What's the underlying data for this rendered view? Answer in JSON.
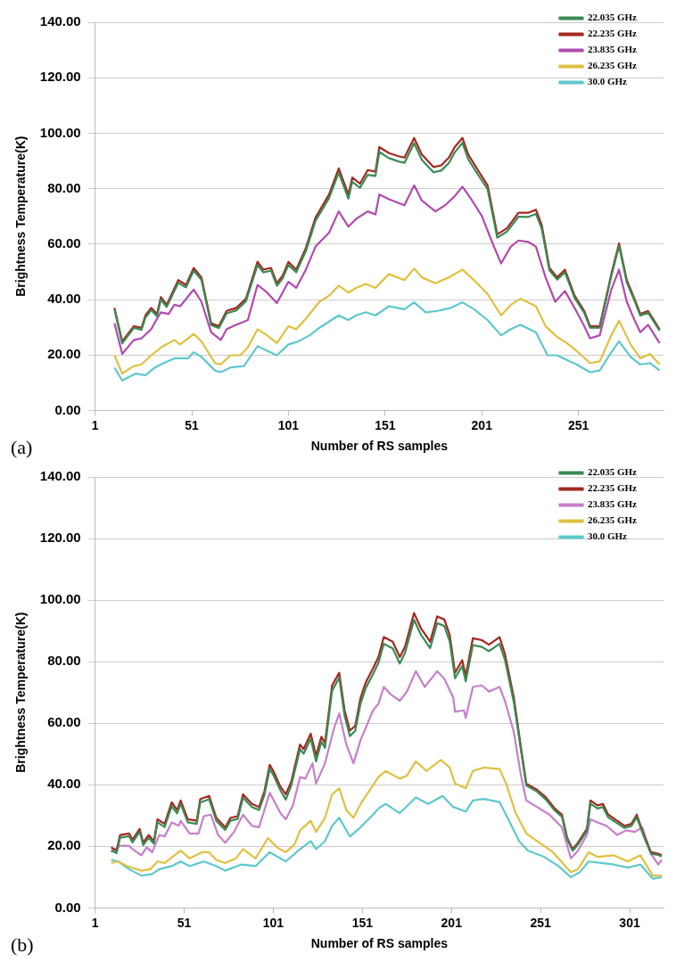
{
  "chart_data": [
    {
      "type": "line",
      "xlabel": "Number of RS samples",
      "ylabel": "Brightness Temperature(K)",
      "annotations": [
        "(a)"
      ],
      "xlim": [
        1,
        295
      ],
      "xticks": [
        1,
        51,
        101,
        151,
        201,
        251
      ],
      "ylim": [
        0,
        140
      ],
      "yticks": [
        {
          "value": 0,
          "label": "0.00"
        },
        {
          "value": 20,
          "label": "20.00"
        },
        {
          "value": 40,
          "label": "40.00"
        },
        {
          "value": 60,
          "label": "60.00"
        },
        {
          "value": 80,
          "label": "80.00"
        },
        {
          "value": 100,
          "label": "100.00"
        },
        {
          "value": 120,
          "label": "120.00"
        },
        {
          "value": 140,
          "label": "140.00"
        }
      ],
      "grid": "y",
      "legend": "top right",
      "series": [
        {
          "name": "22.035 GHz",
          "color": "#3a8a55",
          "x": [
            11,
            15,
            21,
            25,
            27,
            30,
            33,
            35,
            38,
            44,
            48,
            52,
            56,
            61,
            65,
            69,
            74,
            79,
            85,
            88,
            92,
            95,
            98,
            101,
            105,
            110,
            115,
            122,
            127,
            132,
            134,
            138,
            142,
            146,
            148,
            153,
            158,
            161,
            166,
            170,
            176,
            180,
            184,
            187,
            191,
            194,
            199,
            204,
            209,
            214,
            220,
            225,
            229,
            232,
            236,
            240,
            244,
            249,
            254,
            257,
            262,
            268,
            272,
            276,
            280,
            283,
            287,
            293
          ],
          "values": [
            36.5,
            24.2,
            29.8,
            29.1,
            33.5,
            36.2,
            34,
            40,
            37.3,
            46,
            44.4,
            50.4,
            47.1,
            30.8,
            29.7,
            35,
            36.1,
            39.4,
            52.5,
            49.8,
            50.4,
            45,
            47.6,
            52.5,
            49.8,
            57.5,
            68.4,
            76.6,
            85.8,
            76.4,
            82.5,
            80.3,
            85,
            84.6,
            93.2,
            91,
            89.8,
            89.3,
            96.4,
            90.4,
            85.9,
            86.5,
            89.3,
            93.1,
            96.5,
            90.6,
            85.1,
            79.8,
            62.3,
            64.5,
            69.9,
            69.8,
            70.9,
            65.6,
            50.5,
            47.2,
            49.9,
            40.6,
            35.2,
            29.8,
            29.8,
            48.5,
            59.3,
            46.2,
            39.6,
            34.2,
            35.3,
            28.8
          ]
        },
        {
          "name": "22.235 GHz",
          "color": "#a3281e",
          "x": [
            11,
            15,
            21,
            25,
            27,
            30,
            33,
            35,
            38,
            44,
            48,
            52,
            56,
            61,
            65,
            69,
            74,
            79,
            85,
            88,
            92,
            95,
            98,
            101,
            105,
            110,
            115,
            122,
            127,
            132,
            134,
            138,
            142,
            146,
            148,
            153,
            158,
            161,
            166,
            170,
            176,
            180,
            184,
            187,
            191,
            194,
            199,
            204,
            209,
            214,
            220,
            225,
            229,
            232,
            236,
            240,
            244,
            249,
            254,
            257,
            262,
            268,
            272,
            276,
            280,
            283,
            287,
            293
          ],
          "values": [
            37,
            24.9,
            30.4,
            29.8,
            34.3,
            37,
            34.8,
            40.9,
            38.1,
            47,
            45.3,
            51.4,
            48,
            31.5,
            30.4,
            35.9,
            37,
            40.3,
            53.6,
            50.8,
            51.4,
            45.9,
            48.6,
            53.6,
            50.8,
            58.6,
            69.6,
            77.9,
            87.3,
            77.9,
            84,
            81.8,
            86.7,
            86.2,
            95,
            92.8,
            91.7,
            91.2,
            98.3,
            92.3,
            87.8,
            88.4,
            91.2,
            95,
            98.3,
            92.3,
            86.7,
            81.2,
            63.5,
            65.7,
            71.3,
            71.3,
            72.4,
            66.9,
            51.4,
            48,
            50.8,
            41.4,
            35.9,
            30.4,
            30.4,
            49.2,
            60.2,
            47,
            40.3,
            34.8,
            35.9,
            29.3
          ]
        },
        {
          "name": "23.835 GHz",
          "color": "#b04ab0",
          "x": [
            11,
            15,
            21,
            25,
            30,
            33,
            35,
            39,
            42,
            45,
            52,
            56,
            61,
            66,
            69,
            74,
            80,
            85,
            90,
            95,
            101,
            105,
            110,
            115,
            122,
            127,
            132,
            136,
            142,
            146,
            148,
            153,
            161,
            166,
            170,
            177,
            182,
            187,
            191,
            196,
            201,
            206,
            211,
            216,
            220,
            225,
            229,
            234,
            239,
            244,
            249,
            254,
            257,
            262,
            268,
            272,
            276,
            280,
            283,
            287,
            293
          ],
          "values": [
            31.5,
            20.4,
            25.4,
            26,
            29.3,
            33.1,
            35.4,
            34.8,
            38.1,
            37.6,
            43.6,
            39.2,
            28.2,
            25.4,
            29.3,
            30.9,
            32.6,
            45.3,
            42.5,
            38.7,
            46.4,
            44.2,
            50.8,
            59.1,
            64.1,
            71.8,
            66.3,
            69.1,
            71.8,
            70.7,
            77.9,
            76.2,
            74,
            81.2,
            75.7,
            71.8,
            74,
            77.3,
            80.7,
            75.7,
            70.2,
            61.3,
            53,
            59.1,
            61.3,
            60.8,
            59.1,
            48,
            39.2,
            43.1,
            37,
            30.4,
            26,
            27.1,
            43.6,
            50.8,
            39.2,
            32.6,
            28.2,
            30.9,
            24.3
          ]
        },
        {
          "name": "26.235 GHz",
          "color": "#e0c040",
          "x": [
            11,
            15,
            21,
            25,
            30,
            35,
            42,
            45,
            52,
            56,
            63,
            66,
            71,
            76,
            80,
            85,
            90,
            95,
            101,
            105,
            110,
            117,
            122,
            127,
            132,
            136,
            141,
            146,
            153,
            161,
            166,
            170,
            177,
            184,
            191,
            197,
            204,
            211,
            216,
            221,
            229,
            234,
            240,
            245,
            250,
            257,
            262,
            268,
            272,
            278,
            283,
            288,
            293
          ],
          "values": [
            19.9,
            13.3,
            16,
            16.6,
            19.9,
            22.7,
            25.4,
            23.8,
            27.6,
            24.9,
            17.1,
            16.6,
            19.9,
            19.9,
            22.7,
            29.3,
            27.1,
            24.3,
            30.4,
            29.3,
            33.1,
            39.2,
            41.4,
            45,
            42.5,
            44.2,
            45.6,
            44.2,
            49.2,
            47,
            51.2,
            48,
            45.9,
            48,
            50.8,
            47,
            42,
            34.3,
            38.1,
            40.3,
            37.6,
            30.4,
            26.5,
            24.3,
            21.5,
            17.1,
            17.7,
            27.1,
            32.4,
            23.8,
            18.8,
            20.4,
            16.6
          ]
        },
        {
          "name": "30.0 GHz",
          "color": "#5ec8cc",
          "x": [
            11,
            15,
            22,
            27,
            32,
            35,
            42,
            49,
            52,
            56,
            63,
            66,
            71,
            78,
            85,
            90,
            95,
            101,
            106,
            112,
            117,
            127,
            132,
            136,
            141,
            146,
            153,
            161,
            166,
            172,
            178,
            185,
            191,
            197,
            204,
            211,
            216,
            221,
            229,
            235,
            240,
            245,
            250,
            257,
            262,
            268,
            272,
            278,
            283,
            288,
            293
          ],
          "values": [
            15.5,
            10.8,
            13.3,
            12.7,
            15.5,
            16.6,
            18.8,
            18.8,
            21,
            19.3,
            14.4,
            13.8,
            15.5,
            16,
            23.2,
            21.5,
            19.9,
            23.8,
            24.9,
            27.1,
            29.8,
            34.3,
            32.6,
            34.3,
            35.4,
            34.3,
            37.6,
            36.5,
            39,
            35.4,
            35.9,
            37,
            39,
            36.5,
            32.6,
            27.1,
            29.3,
            30.9,
            28.2,
            19.9,
            19.9,
            18.2,
            16.6,
            13.8,
            14.4,
            21,
            24.9,
            19.3,
            16.6,
            17.1,
            14.4
          ]
        }
      ]
    },
    {
      "type": "line",
      "xlabel": "Number of RS samples",
      "ylabel": "Brightness Temperature(K)",
      "annotations": [
        "(b)"
      ],
      "xlim": [
        1,
        320
      ],
      "xticks": [
        1,
        51,
        101,
        151,
        201,
        251,
        301
      ],
      "ylim": [
        0,
        140
      ],
      "yticks": [
        {
          "value": 0,
          "label": "0.00"
        },
        {
          "value": 20,
          "label": "20.00"
        },
        {
          "value": 40,
          "label": "40.00"
        },
        {
          "value": 60,
          "label": "60.00"
        },
        {
          "value": 80,
          "label": "80.00"
        },
        {
          "value": 100,
          "label": "100.00"
        },
        {
          "value": 120,
          "label": "120.00"
        },
        {
          "value": 140,
          "label": "140.00"
        }
      ],
      "grid": "y",
      "legend": "top right",
      "series": [
        {
          "name": "22.035 GHz",
          "color": "#3a8a55",
          "x": [
            10,
            13,
            15,
            20,
            22,
            26,
            28,
            31,
            34,
            36,
            40,
            44,
            47,
            49,
            53,
            58,
            60,
            65,
            69,
            74,
            77,
            81,
            84,
            89,
            93,
            96,
            99,
            101,
            105,
            108,
            111,
            116,
            118,
            122,
            125,
            128,
            130,
            134,
            138,
            141,
            144,
            147,
            150,
            153,
            157,
            160,
            163,
            168,
            172,
            175,
            180,
            184,
            189,
            193,
            197,
            200,
            203,
            207,
            209,
            213,
            218,
            222,
            228,
            231,
            236,
            240,
            243,
            249,
            254,
            259,
            263,
            266,
            269,
            272,
            277,
            279,
            283,
            286,
            289,
            294,
            298,
            302,
            305,
            309,
            313,
            317,
            319
          ],
          "values": [
            18.8,
            17.8,
            22.8,
            23.3,
            21.3,
            24.8,
            20.4,
            22.8,
            20.9,
            27.8,
            26.3,
            33.1,
            30.7,
            33.8,
            27.8,
            27.3,
            34.3,
            35.3,
            28.3,
            25.3,
            28.4,
            28.9,
            35.8,
            32.8,
            31.8,
            36.7,
            45.2,
            43.2,
            38.2,
            35.2,
            39.6,
            51.6,
            50.1,
            55,
            47.6,
            54,
            52,
            70.6,
            74.8,
            62.4,
            55.8,
            57.6,
            66.5,
            71.6,
            76,
            79.6,
            85.8,
            84.3,
            79.4,
            83,
            93.6,
            88.6,
            84.4,
            92.5,
            91.6,
            86.6,
            74.6,
            78.6,
            73.6,
            85.4,
            84.8,
            83.4,
            85.8,
            80.6,
            66.8,
            51.2,
            39.8,
            37.8,
            35.2,
            31.6,
            29.6,
            22.1,
            18.6,
            20.6,
            25,
            33.9,
            32.3,
            32.8,
            29.4,
            27.5,
            26,
            26.6,
            29.5,
            23.1,
            17.6,
            17.2,
            16.7
          ]
        },
        {
          "name": "22.235 GHz",
          "color": "#a3281e",
          "x": [
            10,
            13,
            15,
            20,
            22,
            26,
            28,
            31,
            34,
            36,
            40,
            44,
            47,
            49,
            53,
            58,
            60,
            65,
            69,
            74,
            77,
            81,
            84,
            89,
            93,
            96,
            99,
            101,
            105,
            108,
            111,
            116,
            118,
            122,
            125,
            128,
            130,
            134,
            138,
            141,
            144,
            147,
            150,
            153,
            157,
            160,
            163,
            168,
            172,
            175,
            180,
            184,
            189,
            193,
            197,
            200,
            203,
            207,
            209,
            213,
            218,
            222,
            228,
            231,
            236,
            240,
            243,
            249,
            254,
            259,
            263,
            266,
            269,
            272,
            277,
            279,
            283,
            286,
            289,
            294,
            298,
            302,
            305,
            309,
            313,
            317,
            319
          ],
          "values": [
            19.7,
            18.6,
            23.7,
            24.2,
            22.2,
            25.7,
            21.2,
            23.7,
            21.7,
            28.8,
            27.3,
            34.3,
            31.8,
            34.9,
            28.8,
            28.3,
            35.4,
            36.4,
            29.3,
            26.2,
            29.3,
            29.8,
            36.9,
            33.8,
            32.8,
            37.9,
            46.5,
            44.5,
            39.4,
            36.9,
            40.9,
            53.1,
            51.6,
            56.6,
            49.5,
            55.6,
            53.6,
            72.3,
            76.4,
            64.2,
            57.6,
            59.2,
            68.3,
            73.4,
            77.9,
            81.5,
            88,
            86.5,
            81.5,
            85,
            95.8,
            90.7,
            86.5,
            94.7,
            93.7,
            88.7,
            76.4,
            80.5,
            75.4,
            87.6,
            87,
            85.5,
            88,
            82.5,
            68.3,
            52.1,
            40.4,
            38.4,
            35.9,
            32.3,
            30.3,
            22.7,
            19.1,
            21.2,
            25.7,
            34.9,
            33.3,
            33.8,
            30.3,
            28.3,
            26.7,
            27.3,
            30.3,
            23.7,
            18.1,
            17.6,
            17.1
          ]
        },
        {
          "name": "23.835 GHz",
          "color": "#c77fc9",
          "x": [
            10,
            15,
            20,
            22,
            27,
            30,
            33,
            37,
            40,
            44,
            48,
            49,
            54,
            59,
            62,
            66,
            70,
            74,
            79,
            84,
            89,
            93,
            99,
            105,
            108,
            112,
            116,
            119,
            123,
            125,
            130,
            135,
            138,
            142,
            146,
            150,
            157,
            160,
            163,
            167,
            172,
            176,
            181,
            186,
            193,
            197,
            202,
            203,
            208,
            209,
            213,
            218,
            222,
            228,
            231,
            236,
            240,
            243,
            249,
            256,
            263,
            268,
            272,
            277,
            279,
            283,
            288,
            294,
            299,
            304,
            308,
            313,
            317,
            319
          ],
          "values": [
            18.1,
            20.2,
            20.2,
            19.1,
            17.1,
            19.7,
            18.1,
            23.7,
            23.2,
            27.8,
            26.7,
            28.3,
            24.2,
            24.2,
            29.8,
            30.3,
            23.7,
            21.2,
            24.7,
            30.3,
            26.7,
            26.2,
            37.4,
            30.8,
            28.8,
            33.3,
            42.5,
            42,
            47,
            40.4,
            47,
            58.2,
            63.2,
            53.1,
            47,
            54.6,
            64.2,
            66.3,
            71.8,
            69.3,
            67.3,
            70.3,
            76.9,
            71.8,
            76.9,
            74.4,
            68.3,
            63.7,
            64.2,
            61.7,
            71.8,
            72.3,
            70.3,
            71.8,
            67.3,
            57.1,
            43,
            34.9,
            32.8,
            30.3,
            26.2,
            16.1,
            18.6,
            23.7,
            28.8,
            27.8,
            26.7,
            23.7,
            25.2,
            24.7,
            26.2,
            17.6,
            14.1,
            15.6
          ]
        },
        {
          "name": "26.235 GHz",
          "color": "#e0c040",
          "x": [
            10,
            14,
            19,
            27,
            32,
            36,
            40,
            49,
            54,
            61,
            65,
            69,
            74,
            80,
            84,
            91,
            98,
            103,
            108,
            113,
            116,
            122,
            125,
            130,
            134,
            138,
            142,
            146,
            150,
            157,
            160,
            164,
            172,
            176,
            181,
            187,
            195,
            200,
            203,
            209,
            213,
            219,
            228,
            232,
            237,
            243,
            249,
            258,
            268,
            272,
            278,
            283,
            292,
            300,
            307,
            314,
            319
          ],
          "values": [
            14.6,
            15.1,
            13.6,
            12.1,
            12.6,
            15.1,
            14.6,
            18.6,
            16.1,
            18.1,
            18.1,
            15.6,
            14.6,
            16.1,
            19.1,
            16.1,
            22.7,
            19.7,
            18.1,
            20.7,
            25.2,
            28.3,
            24.7,
            29.3,
            36.9,
            38.9,
            31.8,
            29.3,
            33.8,
            39.9,
            42.5,
            44.5,
            42,
            43,
            47.6,
            44.5,
            48.1,
            45.6,
            40.4,
            38.9,
            44.5,
            45.6,
            45.1,
            39.9,
            30.8,
            24.2,
            21.7,
            18.1,
            11.6,
            12.6,
            18.1,
            16.6,
            17.1,
            15.1,
            17.1,
            10.5,
            10.5
          ]
        },
        {
          "name": "30.0 GHz",
          "color": "#5ec8cc",
          "x": [
            10,
            14,
            20,
            27,
            33,
            37,
            44,
            49,
            54,
            62,
            69,
            74,
            83,
            91,
            99,
            108,
            115,
            122,
            125,
            130,
            134,
            138,
            144,
            149,
            157,
            160,
            164,
            172,
            181,
            188,
            196,
            202,
            209,
            213,
            219,
            228,
            232,
            239,
            244,
            253,
            261,
            268,
            273,
            278,
            292,
            300,
            307,
            314,
            319
          ],
          "values": [
            15.6,
            15.1,
            12.6,
            10.5,
            11,
            12.6,
            13.6,
            15.1,
            13.6,
            15.1,
            13.6,
            12.1,
            14.1,
            13.6,
            18.1,
            15.1,
            18.6,
            21.7,
            19.1,
            21.7,
            26.7,
            29.3,
            23.2,
            25.7,
            30.3,
            32.3,
            33.8,
            30.8,
            35.9,
            33.8,
            36.4,
            32.8,
            31.3,
            34.9,
            35.4,
            34.4,
            29.8,
            21.7,
            18.6,
            16.6,
            13.6,
            10,
            11.6,
            15.1,
            14.1,
            13.1,
            14.1,
            9.5,
            10
          ]
        }
      ]
    }
  ]
}
